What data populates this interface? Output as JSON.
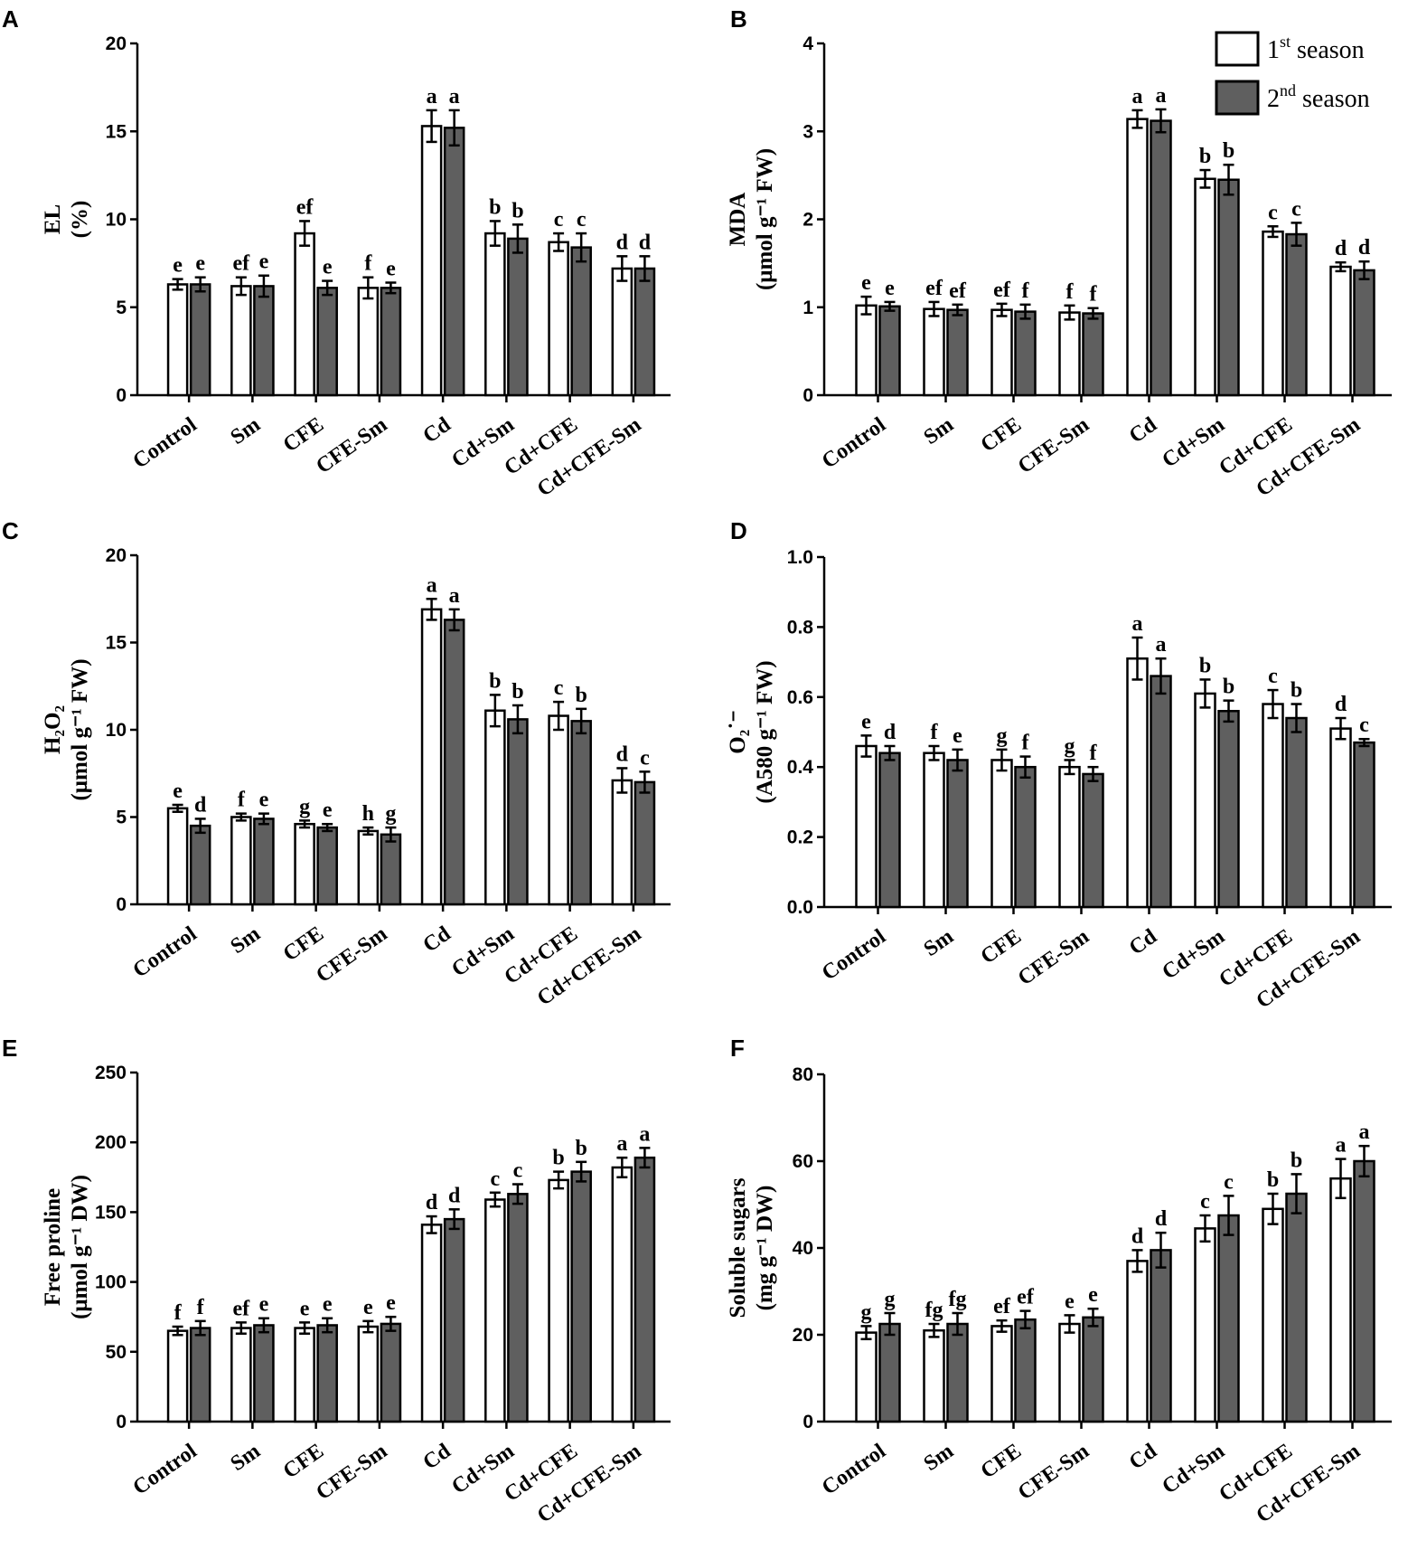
{
  "series_names": [
    "1st season",
    "2nd season"
  ],
  "legend": {
    "items": [
      {
        "base": "1",
        "sup": "st",
        "rest": " season"
      },
      {
        "base": "2",
        "sup": "nd",
        "rest": " season"
      }
    ]
  },
  "colors": {
    "season1": "#ffffff",
    "season2": "#5f5f5f",
    "stroke": "#000000"
  },
  "chart_data": [
    {
      "panel": "A",
      "type": "bar",
      "ylabel_lines": [
        "EL",
        "(%)"
      ],
      "categories": [
        "Control",
        "Sm",
        "CFE",
        "CFE-Sm",
        "Cd",
        "Cd+Sm",
        "Cd+CFE",
        "Cd+CFE-Sm"
      ],
      "ylim": [
        0,
        20
      ],
      "yticks": [
        "0",
        "5",
        "10",
        "15",
        "20"
      ],
      "series": [
        {
          "name": "1st season",
          "values": [
            6.3,
            6.2,
            9.2,
            6.1,
            15.3,
            9.2,
            8.7,
            7.2
          ],
          "errors": [
            0.3,
            0.5,
            0.7,
            0.6,
            0.9,
            0.7,
            0.5,
            0.7
          ],
          "labels": [
            "e",
            "ef",
            "ef",
            "f",
            "a",
            "b",
            "c",
            "d"
          ]
        },
        {
          "name": "2nd season",
          "values": [
            6.3,
            6.2,
            6.1,
            6.1,
            15.2,
            8.9,
            8.4,
            7.2
          ],
          "errors": [
            0.4,
            0.6,
            0.4,
            0.3,
            1.0,
            0.8,
            0.8,
            0.7
          ],
          "labels": [
            "e",
            "e",
            "e",
            "e",
            "a",
            "b",
            "c",
            "d"
          ]
        }
      ]
    },
    {
      "panel": "B",
      "type": "bar",
      "ylabel_lines": [
        "MDA",
        "(μmol g⁻¹ FW)"
      ],
      "categories": [
        "Control",
        "Sm",
        "CFE",
        "CFE-Sm",
        "Cd",
        "Cd+Sm",
        "Cd+CFE",
        "Cd+CFE-Sm"
      ],
      "ylim": [
        0,
        4
      ],
      "yticks": [
        "0",
        "1",
        "2",
        "3",
        "4"
      ],
      "series": [
        {
          "name": "1st season",
          "values": [
            1.02,
            0.98,
            0.97,
            0.94,
            3.14,
            2.46,
            1.86,
            1.46
          ],
          "errors": [
            0.1,
            0.08,
            0.07,
            0.08,
            0.1,
            0.1,
            0.06,
            0.05
          ],
          "labels": [
            "e",
            "ef",
            "ef",
            "f",
            "a",
            "b",
            "c",
            "d"
          ]
        },
        {
          "name": "2nd season",
          "values": [
            1.01,
            0.97,
            0.95,
            0.93,
            3.12,
            2.45,
            1.83,
            1.42
          ],
          "errors": [
            0.05,
            0.06,
            0.08,
            0.06,
            0.13,
            0.17,
            0.13,
            0.1
          ],
          "labels": [
            "e",
            "ef",
            "f",
            "f",
            "a",
            "b",
            "c",
            "d"
          ]
        }
      ]
    },
    {
      "panel": "C",
      "type": "bar",
      "ylabel_lines": [
        "H₂O₂",
        "(μmol g⁻¹ FW)"
      ],
      "categories": [
        "Control",
        "Sm",
        "CFE",
        "CFE-Sm",
        "Cd",
        "Cd+Sm",
        "Cd+CFE",
        "Cd+CFE-Sm"
      ],
      "ylim": [
        0,
        20
      ],
      "yticks": [
        "0",
        "5",
        "10",
        "15",
        "20"
      ],
      "series": [
        {
          "name": "1st season",
          "values": [
            5.5,
            5.0,
            4.6,
            4.2,
            16.9,
            11.1,
            10.8,
            7.1
          ],
          "errors": [
            0.2,
            0.2,
            0.2,
            0.2,
            0.6,
            0.9,
            0.8,
            0.7
          ],
          "labels": [
            "e",
            "f",
            "g",
            "h",
            "a",
            "b",
            "c",
            "d"
          ]
        },
        {
          "name": "2nd season",
          "values": [
            4.5,
            4.9,
            4.4,
            4.0,
            16.3,
            10.6,
            10.5,
            7.0
          ],
          "errors": [
            0.4,
            0.3,
            0.2,
            0.4,
            0.6,
            0.8,
            0.7,
            0.6
          ],
          "labels": [
            "d",
            "e",
            "e",
            "g",
            "a",
            "b",
            "b",
            "c"
          ]
        }
      ]
    },
    {
      "panel": "D",
      "type": "bar",
      "ylabel_lines": [
        "O₂˙⁻",
        "(A580 g⁻¹ FW)"
      ],
      "categories": [
        "Control",
        "Sm",
        "CFE",
        "CFE-Sm",
        "Cd",
        "Cd+Sm",
        "Cd+CFE",
        "Cd+CFE-Sm"
      ],
      "ylim": [
        0,
        1.0
      ],
      "yticks": [
        "0.0",
        "0.2",
        "0.4",
        "0.6",
        "0.8",
        "1.0"
      ],
      "series": [
        {
          "name": "1st season",
          "values": [
            0.46,
            0.44,
            0.42,
            0.4,
            0.71,
            0.61,
            0.58,
            0.51
          ],
          "errors": [
            0.03,
            0.02,
            0.03,
            0.02,
            0.06,
            0.04,
            0.04,
            0.03
          ],
          "labels": [
            "e",
            "f",
            "g",
            "g",
            "a",
            "b",
            "c",
            "d"
          ]
        },
        {
          "name": "2nd season",
          "values": [
            0.44,
            0.42,
            0.4,
            0.38,
            0.66,
            0.56,
            0.54,
            0.47
          ],
          "errors": [
            0.02,
            0.03,
            0.03,
            0.02,
            0.05,
            0.03,
            0.04,
            0.01
          ],
          "labels": [
            "d",
            "e",
            "f",
            "f",
            "a",
            "b",
            "b",
            "c"
          ]
        }
      ]
    },
    {
      "panel": "E",
      "type": "bar",
      "ylabel_lines": [
        "Free proline",
        "(μmol g⁻¹ DW)"
      ],
      "categories": [
        "Control",
        "Sm",
        "CFE",
        "CFE-Sm",
        "Cd",
        "Cd+Sm",
        "Cd+CFE",
        "Cd+CFE-Sm"
      ],
      "ylim": [
        0,
        250
      ],
      "yticks": [
        "0",
        "50",
        "100",
        "150",
        "200",
        "250"
      ],
      "series": [
        {
          "name": "1st season",
          "values": [
            65,
            67,
            67,
            68,
            141,
            159,
            173,
            182
          ],
          "errors": [
            3,
            4,
            4,
            4,
            6,
            5,
            6,
            7
          ],
          "labels": [
            "f",
            "ef",
            "e",
            "e",
            "d",
            "c",
            "b",
            "a"
          ]
        },
        {
          "name": "2nd season",
          "values": [
            67,
            69,
            69,
            70,
            145,
            163,
            179,
            189
          ],
          "errors": [
            5,
            5,
            5,
            5,
            7,
            7,
            7,
            7
          ],
          "labels": [
            "f",
            "e",
            "e",
            "e",
            "d",
            "c",
            "b",
            "a"
          ]
        }
      ]
    },
    {
      "panel": "F",
      "type": "bar",
      "ylabel_lines": [
        "Soluble sugars",
        "(mg g⁻¹ DW)"
      ],
      "categories": [
        "Control",
        "Sm",
        "CFE",
        "CFE-Sm",
        "Cd",
        "Cd+Sm",
        "Cd+CFE",
        "Cd+CFE-Sm"
      ],
      "ylim": [
        0,
        80
      ],
      "yticks": [
        "0",
        "20",
        "40",
        "60",
        "80"
      ],
      "series": [
        {
          "name": "1st season",
          "values": [
            20.5,
            21.0,
            22.0,
            22.5,
            37.0,
            44.5,
            49.0,
            56.0
          ],
          "errors": [
            1.5,
            1.5,
            1.3,
            2.0,
            2.5,
            3.0,
            3.5,
            4.5
          ],
          "labels": [
            "g",
            "fg",
            "ef",
            "e",
            "d",
            "c",
            "b",
            "a"
          ]
        },
        {
          "name": "2nd season",
          "values": [
            22.5,
            22.5,
            23.5,
            24.0,
            39.5,
            47.5,
            52.5,
            60.0
          ],
          "errors": [
            2.5,
            2.5,
            2.0,
            2.0,
            4.0,
            4.5,
            4.5,
            3.5
          ],
          "labels": [
            "g",
            "fg",
            "ef",
            "e",
            "d",
            "c",
            "b",
            "a"
          ]
        }
      ]
    }
  ]
}
